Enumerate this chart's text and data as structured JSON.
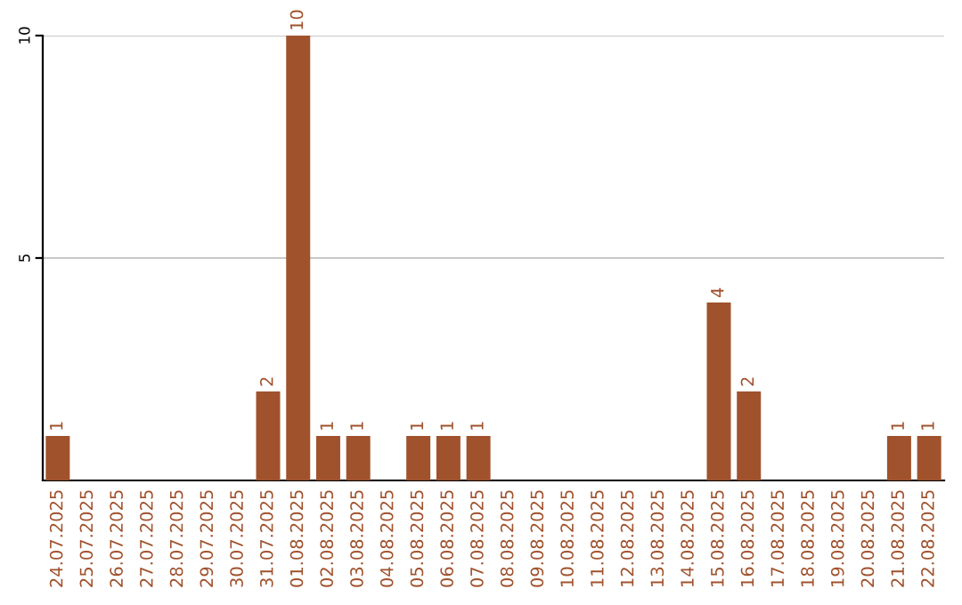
{
  "chart_data": {
    "type": "bar",
    "categories": [
      "24.07.2025",
      "25.07.2025",
      "26.07.2025",
      "27.07.2025",
      "28.07.2025",
      "29.07.2025",
      "30.07.2025",
      "31.07.2025",
      "01.08.2025",
      "02.08.2025",
      "03.08.2025",
      "04.08.2025",
      "05.08.2025",
      "06.08.2025",
      "07.08.2025",
      "08.08.2025",
      "09.08.2025",
      "10.08.2025",
      "11.08.2025",
      "12.08.2025",
      "13.08.2025",
      "14.08.2025",
      "15.08.2025",
      "16.08.2025",
      "17.08.2025",
      "18.08.2025",
      "19.08.2025",
      "20.08.2025",
      "21.08.2025",
      "22.08.2025"
    ],
    "values": [
      1,
      0,
      0,
      0,
      0,
      0,
      0,
      2,
      10,
      1,
      1,
      0,
      1,
      1,
      1,
      0,
      0,
      0,
      0,
      0,
      0,
      0,
      4,
      2,
      0,
      0,
      0,
      0,
      1,
      1
    ],
    "value_labels": [
      "1",
      null,
      null,
      null,
      null,
      null,
      null,
      "2",
      "10",
      "1",
      "1",
      null,
      "1",
      "1",
      "1",
      null,
      null,
      null,
      null,
      null,
      null,
      null,
      "4",
      "2",
      null,
      null,
      null,
      null,
      "1",
      "1"
    ],
    "color": "#a0522d",
    "ylim": [
      0,
      10
    ],
    "yticks": [
      5,
      10
    ],
    "grid": "y"
  }
}
